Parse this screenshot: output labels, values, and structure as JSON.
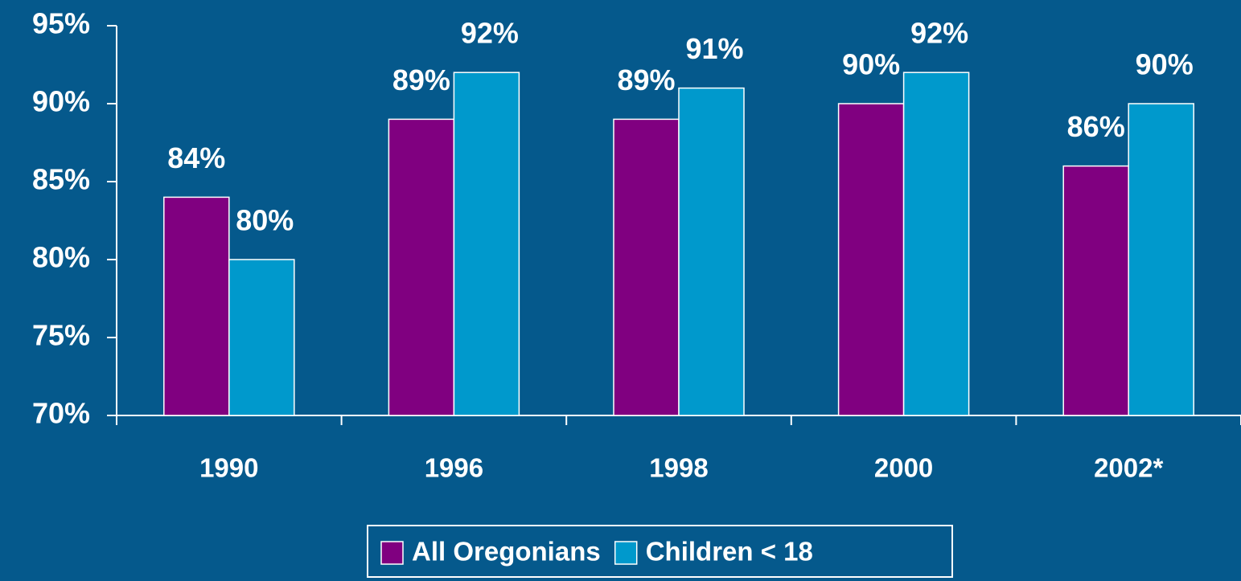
{
  "chart_data": {
    "type": "bar",
    "categories": [
      "1990",
      "1996",
      "1998",
      "2000",
      "2002*"
    ],
    "series": [
      {
        "name": "All Oregonians",
        "color": "#800080",
        "values": [
          84,
          89,
          89,
          90,
          86
        ],
        "value_labels": [
          "84%",
          "89%",
          "89%",
          "90%",
          "86%"
        ]
      },
      {
        "name": "Children < 18",
        "color": "#0099cc",
        "values": [
          80,
          92,
          91,
          92,
          90
        ],
        "value_labels": [
          "80%",
          "92%",
          "91%",
          "92%",
          "90%"
        ]
      }
    ],
    "ylim": [
      70,
      95
    ],
    "yticks": [
      {
        "value": 70,
        "label": "70%"
      },
      {
        "value": 75,
        "label": "75%"
      },
      {
        "value": 80,
        "label": "80%"
      },
      {
        "value": 85,
        "label": "85%"
      },
      {
        "value": 90,
        "label": "90%"
      },
      {
        "value": 95,
        "label": "95%"
      }
    ],
    "legend": "bottom"
  }
}
